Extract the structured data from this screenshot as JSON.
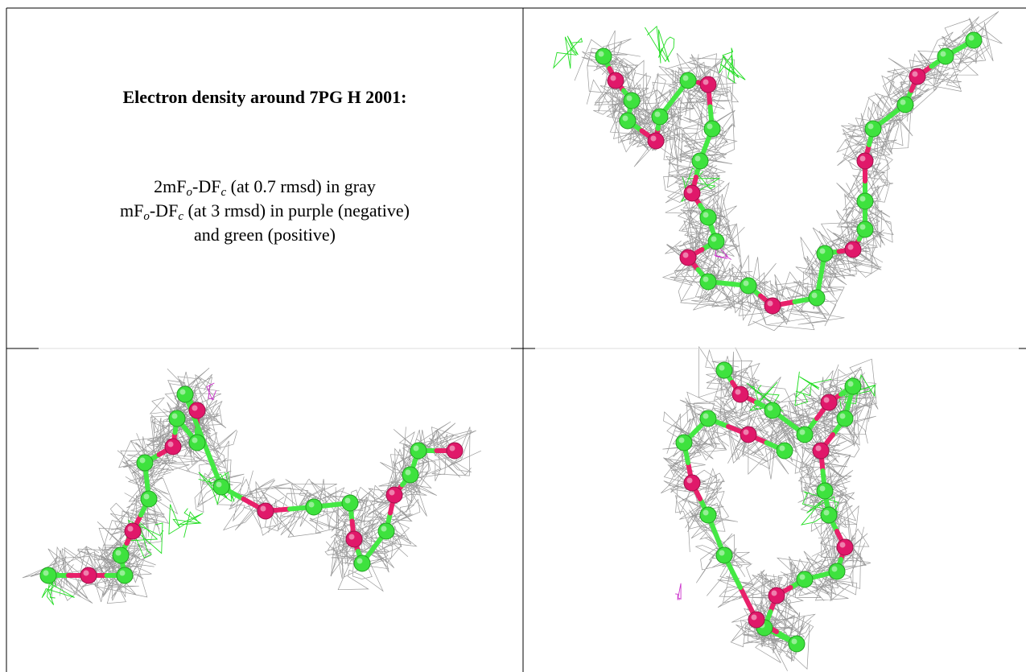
{
  "header": {
    "title": "Electron density around 7PG H 2001:"
  },
  "caption": [
    [
      "2mF",
      "o",
      "-DF",
      "c",
      " (at 0.7 rmsd) in gray"
    ],
    [
      "mF",
      "o",
      "-DF",
      "c",
      " (at 3 rmsd) in purple (negative)"
    ],
    [
      "and green (positive)"
    ]
  ]
}
